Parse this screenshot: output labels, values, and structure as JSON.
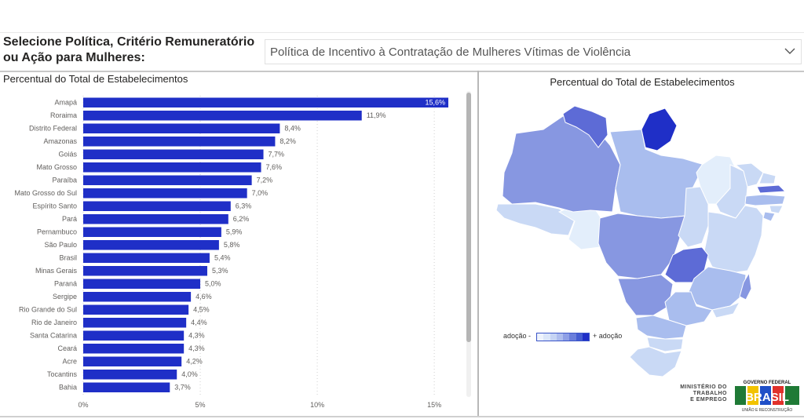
{
  "selector": {
    "label": "Selecione Política, Critério Remuneratório ou Ação para Mulheres:",
    "selected": "Política de Incentivo à Contratação de Mulheres Vítimas de Violência",
    "chevron_icon": "chevron-down-icon"
  },
  "bar_title": "Percentual do Total de Estabelecimentos",
  "map_title": "Percentual do Total de Estabelecimentos",
  "legend": {
    "low": "adoção -",
    "high": "+ adoção"
  },
  "footer": {
    "ministry_lines": [
      "MINISTÉRIO DO",
      "TRABALHO",
      "E EMPREGO"
    ],
    "gov_lines": [
      "GOVERNO FEDERAL",
      "BRASIL",
      "UNIÃO E RECONSTRUÇÃO"
    ]
  },
  "colors": {
    "bar": "#1f2fc7",
    "grid": "#d0d0d0",
    "map_scale": [
      "#e3eefb",
      "#c9d9f5",
      "#a9bdee",
      "#8797e1",
      "#5d6bd6",
      "#1f2fc7"
    ]
  },
  "chart_data": {
    "type": "bar",
    "orientation": "horizontal",
    "categories": [
      "Amapá",
      "Roraima",
      "Distrito Federal",
      "Amazonas",
      "Goiás",
      "Mato Grosso",
      "Paraíba",
      "Mato Grosso do Sul",
      "Espírito Santo",
      "Pará",
      "Pernambuco",
      "São Paulo",
      "Brasil",
      "Minas Gerais",
      "Paraná",
      "Sergipe",
      "Rio Grande do Sul",
      "Rio de Janeiro",
      "Santa Catarina",
      "Ceará",
      "Acre",
      "Tocantins",
      "Bahia"
    ],
    "values": [
      15.6,
      11.9,
      8.4,
      8.2,
      7.7,
      7.6,
      7.2,
      7.0,
      6.3,
      6.2,
      5.9,
      5.8,
      5.4,
      5.3,
      5.0,
      4.6,
      4.5,
      4.4,
      4.3,
      4.3,
      4.2,
      4.0,
      3.7
    ],
    "labels": [
      "15,6%",
      "11,9%",
      "8,4%",
      "8,2%",
      "7,7%",
      "7,6%",
      "7,2%",
      "7,0%",
      "6,3%",
      "6,2%",
      "5,9%",
      "5,8%",
      "5,4%",
      "5,3%",
      "5,0%",
      "4,6%",
      "4,5%",
      "4,4%",
      "4,3%",
      "4,3%",
      "4,2%",
      "4,0%",
      "3,7%"
    ],
    "xticks": [
      0,
      5,
      10,
      15
    ],
    "xtick_labels": [
      "0%",
      "5%",
      "10%",
      "15%"
    ],
    "xlim": [
      0,
      15.6
    ],
    "grid": true
  }
}
